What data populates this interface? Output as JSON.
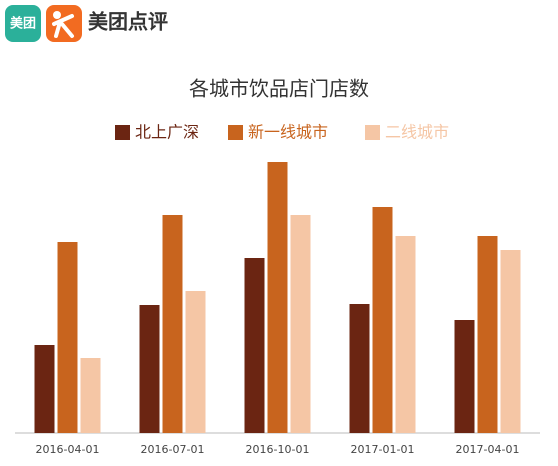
{
  "header": {
    "app_icon": "美团",
    "brand": "美团点评"
  },
  "chart_data": {
    "type": "bar",
    "title": "各城市饮品店门店数",
    "categories": [
      "2016-04-01",
      "2016-07-01",
      "2016-10-01",
      "2017-01-01",
      "2017-04-01"
    ],
    "series": [
      {
        "name": "北上广深",
        "color": "#6b2512",
        "values": [
          88,
          128,
          175,
          129,
          113
        ]
      },
      {
        "name": "新一线城市",
        "color": "#c8641e",
        "values": [
          191,
          218,
          271,
          226,
          197
        ]
      },
      {
        "name": "二线城市",
        "color": "#f5c6a5",
        "values": [
          75,
          142,
          218,
          197,
          183
        ]
      }
    ],
    "legend": "top"
  }
}
